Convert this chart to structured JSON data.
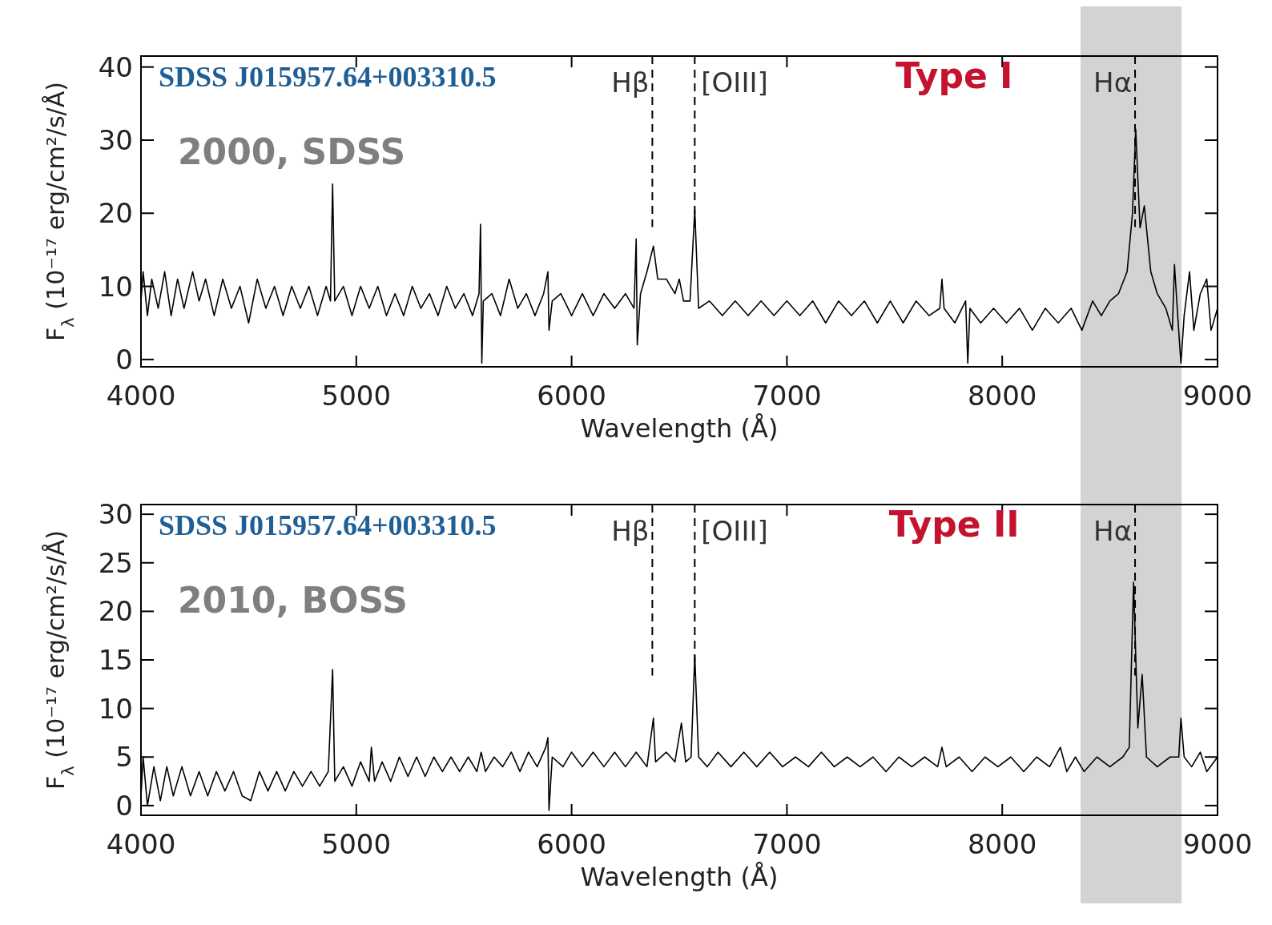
{
  "chart_data": [
    {
      "type": "line",
      "annotations": [
        "SDSS J015957.64+003310.5",
        "2000, SDSS",
        "Type I"
      ],
      "xlabel": "Wavelength (Å)",
      "ylabel": "F$_{λ}$ (10⁻¹⁷ erg/cm²/s/Å)",
      "xlim": [
        4000,
        9000
      ],
      "xticks": [
        4000,
        5000,
        6000,
        7000,
        8000,
        9000
      ],
      "ylim": [
        -1,
        41.5
      ],
      "yticks": [
        0,
        10,
        20,
        30,
        40
      ],
      "ref_lines": [
        {
          "axis": "x",
          "value": 6375,
          "label": "Hβ",
          "line_style": "dashed"
        },
        {
          "axis": "x",
          "value": 6572,
          "label": "[OIII]",
          "line_style": "dashed"
        },
        {
          "axis": "x",
          "value": 8617,
          "label": "Hα",
          "line_style": "dashed"
        }
      ],
      "bands": [
        {
          "axis": "x",
          "from": 8364,
          "to": 8833,
          "color": "#d3d3d3"
        }
      ],
      "series": [
        {
          "color": "#000000",
          "x": [
            4000,
            4010,
            4030,
            4050,
            4080,
            4110,
            4140,
            4170,
            4200,
            4240,
            4270,
            4300,
            4340,
            4380,
            4420,
            4460,
            4500,
            4540,
            4580,
            4620,
            4660,
            4700,
            4740,
            4780,
            4820,
            4860,
            4880,
            4890,
            4900,
            4940,
            4980,
            5020,
            5060,
            5100,
            5140,
            5180,
            5220,
            5260,
            5300,
            5340,
            5380,
            5420,
            5460,
            5500,
            5540,
            5570,
            5577,
            5583,
            5590,
            5630,
            5670,
            5710,
            5750,
            5790,
            5830,
            5870,
            5890,
            5895,
            5910,
            5950,
            6000,
            6050,
            6100,
            6150,
            6200,
            6250,
            6290,
            6300,
            6305,
            6320,
            6350,
            6380,
            6400,
            6440,
            6480,
            6500,
            6520,
            6550,
            6572,
            6590,
            6640,
            6700,
            6760,
            6820,
            6880,
            6940,
            7000,
            7060,
            7120,
            7180,
            7240,
            7300,
            7360,
            7420,
            7480,
            7540,
            7600,
            7660,
            7710,
            7720,
            7730,
            7780,
            7830,
            7840,
            7850,
            7900,
            7960,
            8020,
            8080,
            8140,
            8200,
            8260,
            8320,
            8370,
            8420,
            8460,
            8500,
            8540,
            8580,
            8605,
            8620,
            8640,
            8660,
            8690,
            8720,
            8760,
            8790,
            8800,
            8815,
            8830,
            8845,
            8870,
            8890,
            8920,
            8950,
            8970,
            9000
          ],
          "values": [
            8,
            12,
            6,
            11,
            7,
            12,
            6,
            11,
            7,
            12,
            8,
            11,
            6,
            11,
            7,
            10,
            5,
            11,
            7,
            10,
            6,
            10,
            7,
            10,
            6,
            10,
            8,
            24,
            8,
            10,
            6,
            10,
            7,
            10,
            6,
            9,
            6,
            10,
            7,
            9,
            6,
            10,
            7,
            9,
            6,
            9,
            18.5,
            -0.5,
            8,
            9,
            6,
            11,
            7,
            9,
            6,
            9,
            12,
            4,
            8,
            9,
            6,
            9,
            6,
            9,
            7,
            9,
            7,
            16.5,
            2,
            9,
            12,
            15.5,
            11,
            11,
            9,
            11,
            8,
            8,
            20.5,
            7,
            8,
            6,
            8,
            6,
            8,
            6,
            8,
            6,
            8,
            5,
            8,
            6,
            8,
            5,
            8,
            5,
            8,
            6,
            7,
            11,
            7,
            5,
            8,
            -0.5,
            7,
            5,
            7,
            5,
            7,
            4,
            7,
            5,
            7,
            4,
            8,
            6,
            8,
            9,
            12,
            20,
            31.5,
            18,
            21,
            12,
            9,
            7,
            4,
            13,
            6,
            -0.5,
            6,
            12,
            4,
            9,
            11,
            4,
            7
          ]
        }
      ]
    },
    {
      "type": "line",
      "annotations": [
        "SDSS J015957.64+003310.5",
        "2010, BOSS",
        "Type II"
      ],
      "xlabel": "Wavelength (Å)",
      "ylabel": "F$_{λ}$ (10⁻¹⁷ erg/cm²/s/Å)",
      "xlim": [
        4000,
        9000
      ],
      "xticks": [
        4000,
        5000,
        6000,
        7000,
        8000,
        9000
      ],
      "ylim": [
        -1,
        31
      ],
      "yticks": [
        0,
        5,
        10,
        15,
        20,
        25,
        30
      ],
      "ref_lines": [
        {
          "axis": "x",
          "value": 6375,
          "label": "Hβ",
          "line_style": "dashed"
        },
        {
          "axis": "x",
          "value": 6572,
          "label": "[OIII]",
          "line_style": "dashed"
        },
        {
          "axis": "x",
          "value": 8617,
          "label": "Hα",
          "line_style": "dashed"
        }
      ],
      "bands": [
        {
          "axis": "x",
          "from": 8364,
          "to": 8833,
          "color": "#d3d3d3"
        }
      ],
      "series": [
        {
          "color": "#000000",
          "x": [
            4000,
            4010,
            4030,
            4060,
            4090,
            4120,
            4150,
            4190,
            4230,
            4270,
            4310,
            4350,
            4390,
            4430,
            4470,
            4510,
            4550,
            4590,
            4630,
            4670,
            4710,
            4750,
            4790,
            4830,
            4870,
            4890,
            4900,
            4940,
            4980,
            5020,
            5060,
            5070,
            5085,
            5120,
            5160,
            5200,
            5240,
            5280,
            5320,
            5360,
            5400,
            5440,
            5480,
            5520,
            5560,
            5580,
            5600,
            5640,
            5680,
            5720,
            5760,
            5800,
            5840,
            5880,
            5890,
            5895,
            5910,
            5960,
            6000,
            6050,
            6100,
            6150,
            6200,
            6250,
            6300,
            6350,
            6380,
            6390,
            6440,
            6480,
            6510,
            6530,
            6555,
            6572,
            6590,
            6630,
            6680,
            6740,
            6800,
            6860,
            6920,
            6980,
            7040,
            7100,
            7160,
            7220,
            7280,
            7340,
            7400,
            7460,
            7520,
            7580,
            7640,
            7700,
            7720,
            7740,
            7800,
            7860,
            7920,
            7980,
            8040,
            8100,
            8160,
            8220,
            8270,
            8300,
            8340,
            8380,
            8440,
            8500,
            8560,
            8590,
            8610,
            8630,
            8650,
            8670,
            8720,
            8780,
            8820,
            8830,
            8845,
            8880,
            8920,
            8950,
            9000
          ],
          "values": [
            1,
            5,
            0,
            4,
            0.5,
            4,
            1,
            4,
            1,
            3.5,
            1,
            3.5,
            1.5,
            3.5,
            1,
            0.5,
            3.5,
            1.5,
            3.5,
            1.5,
            3.5,
            2,
            3.5,
            2,
            3.5,
            14,
            2.5,
            4,
            2,
            4.5,
            2.5,
            6,
            2.5,
            4.5,
            2.5,
            5,
            3,
            5,
            3,
            5,
            3.5,
            5,
            3.5,
            5,
            3.5,
            5.5,
            3.5,
            5,
            4,
            5.5,
            3.5,
            5.5,
            4,
            6,
            7,
            -0.5,
            5,
            4,
            5.5,
            4,
            5.5,
            4,
            5.5,
            4,
            5.5,
            4,
            9,
            4.5,
            5.5,
            4.5,
            8.5,
            4.5,
            5,
            15.5,
            5,
            4,
            5.5,
            4,
            5.5,
            4,
            5.5,
            4,
            5,
            4,
            5.5,
            4,
            5,
            4,
            5,
            3.5,
            5,
            4,
            5,
            4,
            6,
            4,
            5,
            3.5,
            5,
            4,
            5,
            3.5,
            5,
            4,
            6,
            3.5,
            5,
            3.5,
            5,
            4,
            5,
            6,
            23,
            8,
            13.5,
            5,
            4,
            5,
            5,
            9,
            5,
            4,
            5.5,
            3.5,
            5
          ]
        }
      ]
    }
  ]
}
